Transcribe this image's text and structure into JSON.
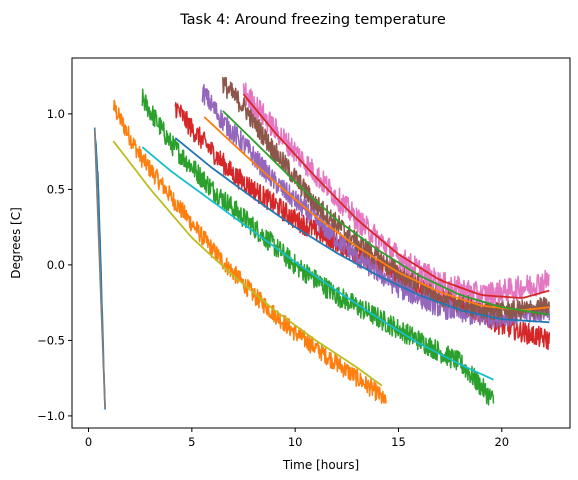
{
  "chart_data": {
    "type": "line",
    "title": "Task 4: Around freezing temperature",
    "xlabel": "Time [hours]",
    "ylabel": "Degrees [C]",
    "xlim": [
      -0.8,
      23.3
    ],
    "ylim": [
      -1.08,
      1.37
    ],
    "xticks": [
      0,
      5,
      10,
      15,
      20
    ],
    "yticks": [
      -1.0,
      -0.5,
      0.0,
      0.5,
      1.0
    ],
    "xtick_labels": [
      "0",
      "5",
      "10",
      "15",
      "20"
    ],
    "ytick_labels": [
      "−1.0",
      "−0.5",
      "0.0",
      "0.5",
      "1.0"
    ],
    "grid": false,
    "legend": "none",
    "series": [
      {
        "kind": "measured",
        "color": "#1f77b4",
        "x": [
          0.3,
          0.45,
          0.6,
          0.7,
          0.8
        ],
        "y": [
          0.9,
          0.6,
          0.0,
          -0.5,
          -0.95
        ],
        "noise": 0.03
      },
      {
        "kind": "measured",
        "color": "#ff7f0e",
        "x": [
          1.2,
          2.5,
          4.0,
          6.0,
          8.0,
          10.0,
          12.0,
          14.0,
          14.4
        ],
        "y": [
          1.05,
          0.72,
          0.45,
          0.1,
          -0.2,
          -0.45,
          -0.65,
          -0.85,
          -0.92
        ],
        "noise": 0.06
      },
      {
        "kind": "measured",
        "color": "#2ca02c",
        "x": [
          2.6,
          4.0,
          6.0,
          8.0,
          10.0,
          12.0,
          14.0,
          16.0,
          18.0,
          19.6
        ],
        "y": [
          1.1,
          0.8,
          0.5,
          0.25,
          0.0,
          -0.2,
          -0.35,
          -0.5,
          -0.65,
          -0.9
        ],
        "noise": 0.07
      },
      {
        "kind": "measured",
        "color": "#d62728",
        "x": [
          4.2,
          5.0,
          6.0,
          7.0,
          8.0,
          10.0,
          12.0,
          14.0,
          16.0,
          18.0,
          20.0,
          22.3
        ],
        "y": [
          1.05,
          0.9,
          0.75,
          0.6,
          0.5,
          0.3,
          0.15,
          0.0,
          -0.15,
          -0.25,
          -0.4,
          -0.5
        ],
        "noise": 0.07
      },
      {
        "kind": "measured",
        "color": "#9467bd",
        "x": [
          5.5,
          6.5,
          7.5,
          9.0,
          11.0,
          13.0,
          15.0,
          17.0,
          19.0,
          21.0,
          22.3
        ],
        "y": [
          1.15,
          0.95,
          0.8,
          0.55,
          0.3,
          0.05,
          -0.15,
          -0.28,
          -0.35,
          -0.33,
          -0.3
        ],
        "noise": 0.07
      },
      {
        "kind": "measured",
        "color": "#8c564b",
        "x": [
          6.5,
          7.5,
          9.0,
          11.0,
          13.0,
          15.0,
          17.0,
          19.0,
          21.0,
          22.3
        ],
        "y": [
          1.2,
          1.05,
          0.75,
          0.4,
          0.15,
          -0.05,
          -0.2,
          -0.3,
          -0.3,
          -0.28
        ],
        "noise": 0.07
      },
      {
        "kind": "measured",
        "color": "#e377c2",
        "x": [
          7.5,
          9.0,
          11.0,
          13.0,
          15.0,
          17.0,
          19.0,
          21.0,
          22.3
        ],
        "y": [
          1.15,
          0.9,
          0.6,
          0.3,
          0.05,
          -0.12,
          -0.2,
          -0.15,
          -0.1
        ],
        "noise": 0.08
      },
      {
        "kind": "fit",
        "color": "#7f7f7f",
        "x": [
          0.3,
          0.8
        ],
        "y": [
          0.9,
          -0.95
        ],
        "noise": 0
      },
      {
        "kind": "fit",
        "color": "#bcbd22",
        "x": [
          1.2,
          3.0,
          5.0,
          7.0,
          9.0,
          11.0,
          13.0,
          14.2
        ],
        "y": [
          0.82,
          0.5,
          0.18,
          -0.07,
          -0.3,
          -0.5,
          -0.68,
          -0.8
        ],
        "noise": 0
      },
      {
        "kind": "fit",
        "color": "#17becf",
        "x": [
          2.6,
          4.0,
          6.0,
          8.0,
          10.0,
          12.0,
          14.0,
          16.0,
          18.0,
          19.6
        ],
        "y": [
          0.78,
          0.62,
          0.42,
          0.22,
          0.02,
          -0.17,
          -0.35,
          -0.52,
          -0.66,
          -0.76
        ],
        "noise": 0
      },
      {
        "kind": "fit",
        "color": "#1f77b4",
        "x": [
          4.2,
          6.0,
          8.0,
          10.0,
          12.0,
          14.0,
          16.0,
          18.0,
          20.0,
          22.3
        ],
        "y": [
          0.84,
          0.64,
          0.44,
          0.25,
          0.08,
          -0.07,
          -0.2,
          -0.3,
          -0.36,
          -0.38
        ],
        "noise": 0
      },
      {
        "kind": "fit",
        "color": "#ff7f0e",
        "x": [
          5.6,
          7.0,
          9.0,
          11.0,
          13.0,
          15.0,
          17.0,
          19.0,
          21.0,
          22.3
        ],
        "y": [
          0.98,
          0.8,
          0.55,
          0.32,
          0.12,
          -0.05,
          -0.18,
          -0.27,
          -0.3,
          -0.28
        ],
        "noise": 0
      },
      {
        "kind": "fit",
        "color": "#2ca02c",
        "x": [
          6.5,
          8.0,
          10.0,
          12.0,
          14.0,
          16.0,
          18.0,
          20.0,
          22.3
        ],
        "y": [
          1.02,
          0.82,
          0.55,
          0.3,
          0.1,
          -0.07,
          -0.2,
          -0.28,
          -0.33
        ],
        "noise": 0
      },
      {
        "kind": "fit",
        "color": "#d62728",
        "x": [
          7.5,
          9.0,
          11.0,
          13.0,
          15.0,
          17.0,
          19.0,
          21.0,
          22.3
        ],
        "y": [
          1.13,
          0.88,
          0.58,
          0.3,
          0.07,
          -0.1,
          -0.2,
          -0.22,
          -0.17
        ],
        "noise": 0
      }
    ]
  }
}
